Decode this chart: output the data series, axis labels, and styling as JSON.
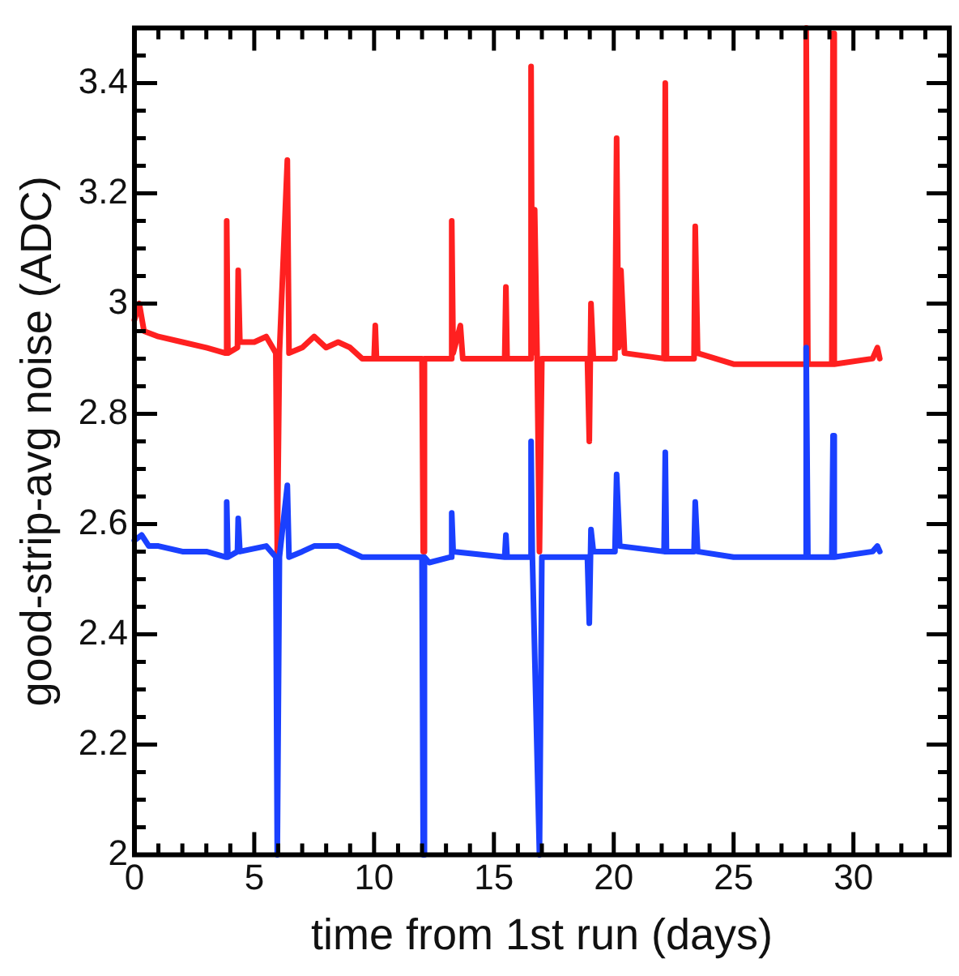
{
  "chart_data": {
    "type": "line",
    "xlabel": "time from 1st run (days)",
    "ylabel": "good-strip-avg noise (ADC)",
    "xlim": [
      0,
      34
    ],
    "ylim": [
      2,
      3.5
    ],
    "xticks": [
      0,
      {
        "value": 1,
        "label": null
      },
      {
        "value": 2,
        "label": null
      },
      {
        "value": 3,
        "label": null
      },
      {
        "value": 4,
        "label": null
      },
      5,
      {
        "value": 6,
        "label": null
      },
      {
        "value": 7,
        "label": null
      },
      {
        "value": 8,
        "label": null
      },
      {
        "value": 9,
        "label": null
      },
      10,
      {
        "value": 11,
        "label": null
      },
      {
        "value": 12,
        "label": null
      },
      {
        "value": 13,
        "label": null
      },
      {
        "value": 14,
        "label": null
      },
      15,
      {
        "value": 16,
        "label": null
      },
      {
        "value": 17,
        "label": null
      },
      {
        "value": 18,
        "label": null
      },
      {
        "value": 19,
        "label": null
      },
      20,
      {
        "value": 21,
        "label": null
      },
      {
        "value": 22,
        "label": null
      },
      {
        "value": 23,
        "label": null
      },
      {
        "value": 24,
        "label": null
      },
      25,
      {
        "value": 26,
        "label": null
      },
      {
        "value": 27,
        "label": null
      },
      {
        "value": 28,
        "label": null
      },
      {
        "value": 29,
        "label": null
      },
      30,
      {
        "value": 31,
        "label": null
      },
      {
        "value": 32,
        "label": null
      },
      {
        "value": 33,
        "label": null
      }
    ],
    "yticks": [
      2,
      {
        "value": 2.05,
        "label": null
      },
      {
        "value": 2.1,
        "label": null
      },
      {
        "value": 2.15,
        "label": null
      },
      2.2,
      {
        "value": 2.25,
        "label": null
      },
      {
        "value": 2.3,
        "label": null
      },
      {
        "value": 2.35,
        "label": null
      },
      2.4,
      {
        "value": 2.45,
        "label": null
      },
      {
        "value": 2.5,
        "label": null
      },
      {
        "value": 2.55,
        "label": null
      },
      2.6,
      {
        "value": 2.65,
        "label": null
      },
      {
        "value": 2.7,
        "label": null
      },
      {
        "value": 2.75,
        "label": null
      },
      2.8,
      {
        "value": 2.85,
        "label": null
      },
      {
        "value": 2.9,
        "label": null
      },
      {
        "value": 2.95,
        "label": null
      },
      3,
      {
        "value": 3.05,
        "label": null
      },
      {
        "value": 3.1,
        "label": null
      },
      {
        "value": 3.15,
        "label": null
      },
      3.2,
      {
        "value": 3.25,
        "label": null
      },
      {
        "value": 3.3,
        "label": null
      },
      {
        "value": 3.35,
        "label": null
      },
      3.4,
      {
        "value": 3.45,
        "label": null
      }
    ],
    "grid": false,
    "legend": false,
    "marker": "none",
    "line_style": "solid",
    "series": [
      {
        "color": "#ff2020",
        "x": [
          0,
          0.2,
          0.4,
          1,
          2,
          3,
          3.8,
          3.85,
          3.9,
          4.3,
          4.33,
          4.4,
          5,
          5.5,
          5.9,
          5.96,
          6.05,
          6.38,
          6.45,
          7,
          7.5,
          8,
          8.5,
          9,
          9.5,
          10,
          10.05,
          10.1,
          12,
          12.05,
          12.1,
          13.2,
          13.24,
          13.3,
          13.6,
          13.7,
          15.45,
          15.5,
          15.55,
          16.5,
          16.55,
          16.6,
          16.7,
          16.8,
          16.9,
          17,
          18.9,
          18.98,
          19.05,
          19.15,
          20.05,
          20.12,
          20.2,
          20.3,
          20.45,
          22.1,
          22.15,
          22.2,
          23.35,
          23.4,
          23.5,
          25,
          28,
          28.03,
          28.1,
          29.1,
          29.15,
          29.2,
          30.8,
          31,
          31.1
        ],
        "values": [
          2.97,
          3.0,
          2.95,
          2.94,
          2.93,
          2.92,
          2.91,
          3.15,
          2.91,
          2.92,
          3.06,
          2.93,
          2.93,
          2.94,
          2.91,
          2.55,
          2.91,
          3.26,
          2.91,
          2.92,
          2.94,
          2.92,
          2.93,
          2.92,
          2.9,
          2.9,
          2.96,
          2.9,
          2.9,
          2.55,
          2.9,
          2.9,
          3.15,
          2.91,
          2.96,
          2.9,
          2.9,
          3.03,
          2.9,
          2.9,
          3.43,
          2.91,
          3.17,
          2.91,
          2.55,
          2.9,
          2.9,
          2.75,
          3.0,
          2.9,
          2.9,
          3.3,
          2.92,
          3.06,
          2.91,
          2.9,
          3.4,
          2.9,
          2.9,
          3.14,
          2.91,
          2.89,
          2.89,
          3.5,
          2.89,
          2.89,
          3.49,
          2.89,
          2.9,
          2.92,
          2.9
        ]
      },
      {
        "color": "#1a40ff",
        "x": [
          0,
          0.3,
          0.6,
          1,
          2,
          3,
          3.8,
          3.85,
          3.9,
          4.3,
          4.33,
          4.4,
          5.5,
          5.9,
          5.96,
          6.05,
          6.38,
          6.45,
          7,
          7.5,
          8.5,
          9.5,
          12,
          12.05,
          12.1,
          12.3,
          13.2,
          13.24,
          13.3,
          15.45,
          15.5,
          15.55,
          16.5,
          16.55,
          16.6,
          16.9,
          17,
          18.9,
          18.98,
          19.05,
          19.15,
          20.05,
          20.12,
          20.25,
          22.1,
          22.15,
          22.2,
          23.35,
          23.4,
          23.5,
          25,
          28,
          28.03,
          28.1,
          29.1,
          29.15,
          29.2,
          30.8,
          31,
          31.1
        ],
        "values": [
          2.57,
          2.58,
          2.56,
          2.56,
          2.55,
          2.55,
          2.54,
          2.64,
          2.54,
          2.55,
          2.61,
          2.55,
          2.56,
          2.54,
          2.0,
          2.54,
          2.67,
          2.54,
          2.55,
          2.56,
          2.56,
          2.54,
          2.54,
          2.0,
          2.54,
          2.53,
          2.54,
          2.62,
          2.55,
          2.54,
          2.58,
          2.54,
          2.54,
          2.75,
          2.55,
          2.0,
          2.54,
          2.54,
          2.42,
          2.59,
          2.55,
          2.55,
          2.69,
          2.56,
          2.55,
          2.73,
          2.55,
          2.55,
          2.64,
          2.55,
          2.54,
          2.54,
          2.92,
          2.54,
          2.54,
          2.76,
          2.54,
          2.55,
          2.56,
          2.55
        ]
      }
    ]
  }
}
